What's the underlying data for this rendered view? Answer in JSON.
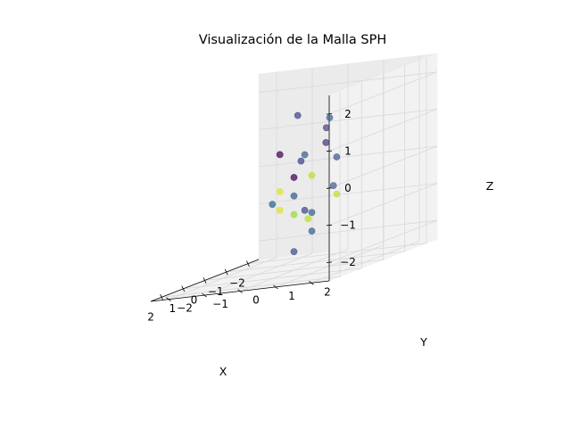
{
  "chart_data": {
    "type": "scatter3d",
    "title": "Visualización de la Malla SPH",
    "xlabel": "X",
    "ylabel": "Y",
    "zlabel": "Z",
    "xlim": [
      -2.5,
      2.5
    ],
    "ylim": [
      -2.5,
      2.5
    ],
    "zlim": [
      -2.5,
      2.5
    ],
    "x_ticks": [
      -2,
      -1,
      0,
      1,
      2
    ],
    "y_ticks": [
      -2,
      -1,
      0,
      1,
      2
    ],
    "z_ticks": [
      2,
      1,
      0,
      -1,
      -2
    ],
    "x_tick_labels": [
      "−2",
      "−1",
      "0",
      "1",
      "2"
    ],
    "y_tick_labels": [
      "−2",
      "−1",
      "0",
      "1",
      "2"
    ],
    "z_tick_labels": [
      "2",
      "1",
      "0",
      "−1",
      "−2"
    ],
    "grid": true,
    "colormap": "viridis",
    "colors": {
      "pane": "#f2f2f2",
      "pane_side": "#ebebeb",
      "grid": "#d9d9d9",
      "axis": "#000000"
    },
    "points": [
      {
        "x": -1.0,
        "y": -0.5,
        "z": 1.5,
        "c": 0.2
      },
      {
        "x": 1.0,
        "y": 1.5,
        "z": 1.0,
        "c": 0.15
      },
      {
        "x": 0.5,
        "y": 0.5,
        "z": 0.5,
        "c": 0.2
      },
      {
        "x": -1.5,
        "y": 0.0,
        "z": 1.0,
        "c": 0.15
      },
      {
        "x": 0.0,
        "y": 1.0,
        "z": 1.5,
        "c": 0.3
      },
      {
        "x": -0.5,
        "y": 0.0,
        "z": 0.5,
        "c": 0.3
      },
      {
        "x": -1.0,
        "y": -1.0,
        "z": 0.5,
        "c": 0.0
      },
      {
        "x": 0.0,
        "y": 0.0,
        "z": 0.0,
        "c": 0.0
      },
      {
        "x": 0.5,
        "y": 1.5,
        "z": 0.5,
        "c": 0.25
      },
      {
        "x": -1.0,
        "y": 0.5,
        "z": -0.5,
        "c": 0.25
      },
      {
        "x": 0.0,
        "y": 0.0,
        "z": -0.5,
        "c": 0.3
      },
      {
        "x": 1.0,
        "y": 0.0,
        "z": -0.5,
        "c": 0.35
      },
      {
        "x": 0.0,
        "y": 0.5,
        "z": 0.0,
        "c": 0.9
      },
      {
        "x": -1.0,
        "y": -1.0,
        "z": -0.5,
        "c": 0.95
      },
      {
        "x": 0.5,
        "y": 1.5,
        "z": -0.5,
        "c": 0.9
      },
      {
        "x": 0.0,
        "y": 0.0,
        "z": -1.0,
        "c": 0.85
      },
      {
        "x": -0.5,
        "y": 0.0,
        "z": -1.0,
        "c": 0.2
      },
      {
        "x": -1.0,
        "y": -1.0,
        "z": -1.0,
        "c": 0.95
      },
      {
        "x": 0.0,
        "y": 0.5,
        "z": -1.5,
        "c": 0.3
      },
      {
        "x": 0.0,
        "y": 0.5,
        "z": -1.0,
        "c": 0.3
      },
      {
        "x": 1.0,
        "y": 1.0,
        "z": -1.0,
        "c": 0.9
      },
      {
        "x": 0.0,
        "y": 0.0,
        "z": -2.0,
        "c": 0.25
      }
    ]
  }
}
